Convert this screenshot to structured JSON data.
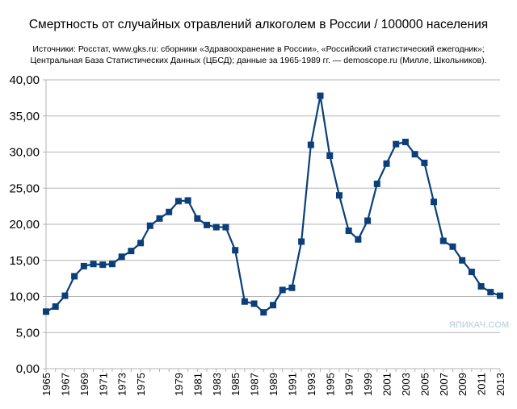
{
  "chart_data": {
    "type": "line",
    "title": "Смертность от случайных отравлений алкоголем в России / 100000 населения",
    "subtitle": [
      "Источники: Росстат, www.gks.ru: сборники «Здравоохранение в России», «Российский статистический ежегодник»;",
      "Центральная База Статистических Данных (ЦБСД);  данные за 1965-1989 гг. — demoscope.ru (Милле, Школьников)."
    ],
    "xlabel": "",
    "ylabel": "",
    "ylim": [
      0,
      40
    ],
    "xlim": [
      1965,
      2013
    ],
    "yticks": [
      "0,00",
      "5,00",
      "10,00",
      "15,00",
      "20,00",
      "25,00",
      "30,00",
      "35,00",
      "40,00"
    ],
    "xticks": [
      "1965",
      "1967",
      "1969",
      "1971",
      "1973",
      "1975",
      "1979",
      "1981",
      "1983",
      "1985",
      "1987",
      "1989",
      "1991",
      "1993",
      "1995",
      "1997",
      "1999",
      "2001",
      "2003",
      "2005",
      "2007",
      "2009",
      "2011",
      "2013"
    ],
    "grid": true,
    "series": [
      {
        "color": "#0b3f7a",
        "x": [
          1965,
          1966,
          1967,
          1968,
          1969,
          1970,
          1971,
          1972,
          1973,
          1974,
          1975,
          1976,
          1977,
          1978,
          1979,
          1980,
          1981,
          1982,
          1983,
          1984,
          1985,
          1986,
          1987,
          1988,
          1989,
          1990,
          1991,
          1992,
          1993,
          1994,
          1995,
          1996,
          1997,
          1998,
          1999,
          2000,
          2001,
          2002,
          2003,
          2004,
          2005,
          2006,
          2007,
          2008,
          2009,
          2010,
          2011,
          2012,
          2013
        ],
        "values": [
          7.9,
          8.6,
          10.1,
          12.8,
          14.2,
          14.5,
          14.4,
          14.5,
          15.5,
          16.3,
          17.4,
          19.8,
          20.8,
          21.7,
          23.2,
          23.3,
          20.8,
          19.9,
          19.6,
          19.6,
          16.4,
          9.3,
          9.0,
          7.8,
          8.8,
          10.9,
          11.2,
          17.6,
          31.0,
          37.8,
          29.5,
          24.0,
          19.1,
          17.9,
          20.5,
          25.6,
          28.4,
          31.1,
          31.4,
          29.7,
          28.5,
          23.1,
          17.7,
          16.9,
          15.0,
          13.4,
          11.4,
          10.6,
          10.1
        ]
      }
    ]
  },
  "watermark": "ЯПИКАЧ.COM"
}
